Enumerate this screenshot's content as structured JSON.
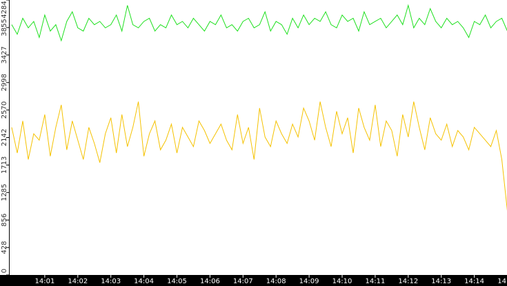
{
  "chart_data": {
    "type": "line",
    "categories": [
      null,
      null,
      null,
      null,
      null,
      null,
      "14:01",
      null,
      null,
      null,
      null,
      null,
      "14:02",
      null,
      null,
      null,
      null,
      null,
      "14:03",
      null,
      null,
      null,
      null,
      null,
      "14:04",
      null,
      null,
      null,
      null,
      null,
      "14:05",
      null,
      null,
      null,
      null,
      null,
      "14:06",
      null,
      null,
      null,
      null,
      null,
      "14:07",
      null,
      null,
      null,
      null,
      null,
      "14:08",
      null,
      null,
      null,
      null,
      null,
      "14:09",
      null,
      null,
      null,
      null,
      null,
      "14:10",
      null,
      null,
      null,
      null,
      null,
      "14:11",
      null,
      null,
      null,
      null,
      null,
      "14:12",
      null,
      null,
      null,
      null,
      null,
      "14:13",
      null,
      null,
      null,
      null,
      null,
      "14:14",
      null,
      null,
      null,
      null,
      null,
      "14"
    ],
    "series": [
      {
        "color": "#1ee01e",
        "values": [
          3900,
          3750,
          4000,
          3850,
          3950,
          3700,
          4050,
          3800,
          3900,
          3650,
          3950,
          4100,
          3850,
          3800,
          4000,
          3900,
          3950,
          3850,
          3900,
          4050,
          3800,
          4200,
          3900,
          3850,
          3950,
          4000,
          3800,
          3900,
          3850,
          4050,
          3900,
          3950,
          3850,
          4000,
          3900,
          3800,
          3950,
          3900,
          4050,
          3850,
          3900,
          3800,
          3950,
          4000,
          3850,
          3900,
          4100,
          3800,
          3950,
          3900,
          3750,
          4000,
          3850,
          4050,
          3900,
          4000,
          3950,
          4100,
          3900,
          3850,
          4050,
          3950,
          4000,
          3800,
          4100,
          3900,
          3950,
          4000,
          3850,
          3950,
          4050,
          3900,
          4200,
          3850,
          4000,
          3900,
          4150,
          3950,
          3850,
          4000,
          3900,
          3950,
          3850,
          3700,
          3950,
          3900,
          4050,
          3850,
          3950,
          4000,
          3800
        ]
      },
      {
        "color": "#f5c200",
        "values": [
          2300,
          1900,
          2400,
          1800,
          2200,
          2100,
          2500,
          1850,
          2300,
          2650,
          1950,
          2400,
          2100,
          1800,
          2300,
          2050,
          1750,
          2200,
          2450,
          1900,
          2500,
          2000,
          2300,
          2700,
          1850,
          2200,
          2400,
          1950,
          2100,
          2350,
          1900,
          2300,
          2150,
          2000,
          2400,
          2250,
          2050,
          2200,
          2350,
          2100,
          1950,
          2500,
          2050,
          2300,
          1800,
          2600,
          2150,
          2000,
          2400,
          2200,
          2050,
          2350,
          2150,
          2600,
          2400,
          2100,
          2700,
          2300,
          2000,
          2550,
          2200,
          2450,
          1900,
          2600,
          2300,
          2100,
          2650,
          2000,
          2400,
          2250,
          1850,
          2500,
          2150,
          2700,
          2300,
          1950,
          2450,
          2200,
          2100,
          2350,
          2000,
          2250,
          2150,
          1950,
          2300,
          2200,
          2100,
          2000,
          2250,
          1800,
          1000
        ]
      }
    ],
    "ylim": [
      0,
      4284
    ],
    "yticks": [
      0,
      428,
      856,
      1285,
      1713,
      2142,
      2570,
      2998,
      3427,
      3855,
      4284
    ]
  }
}
